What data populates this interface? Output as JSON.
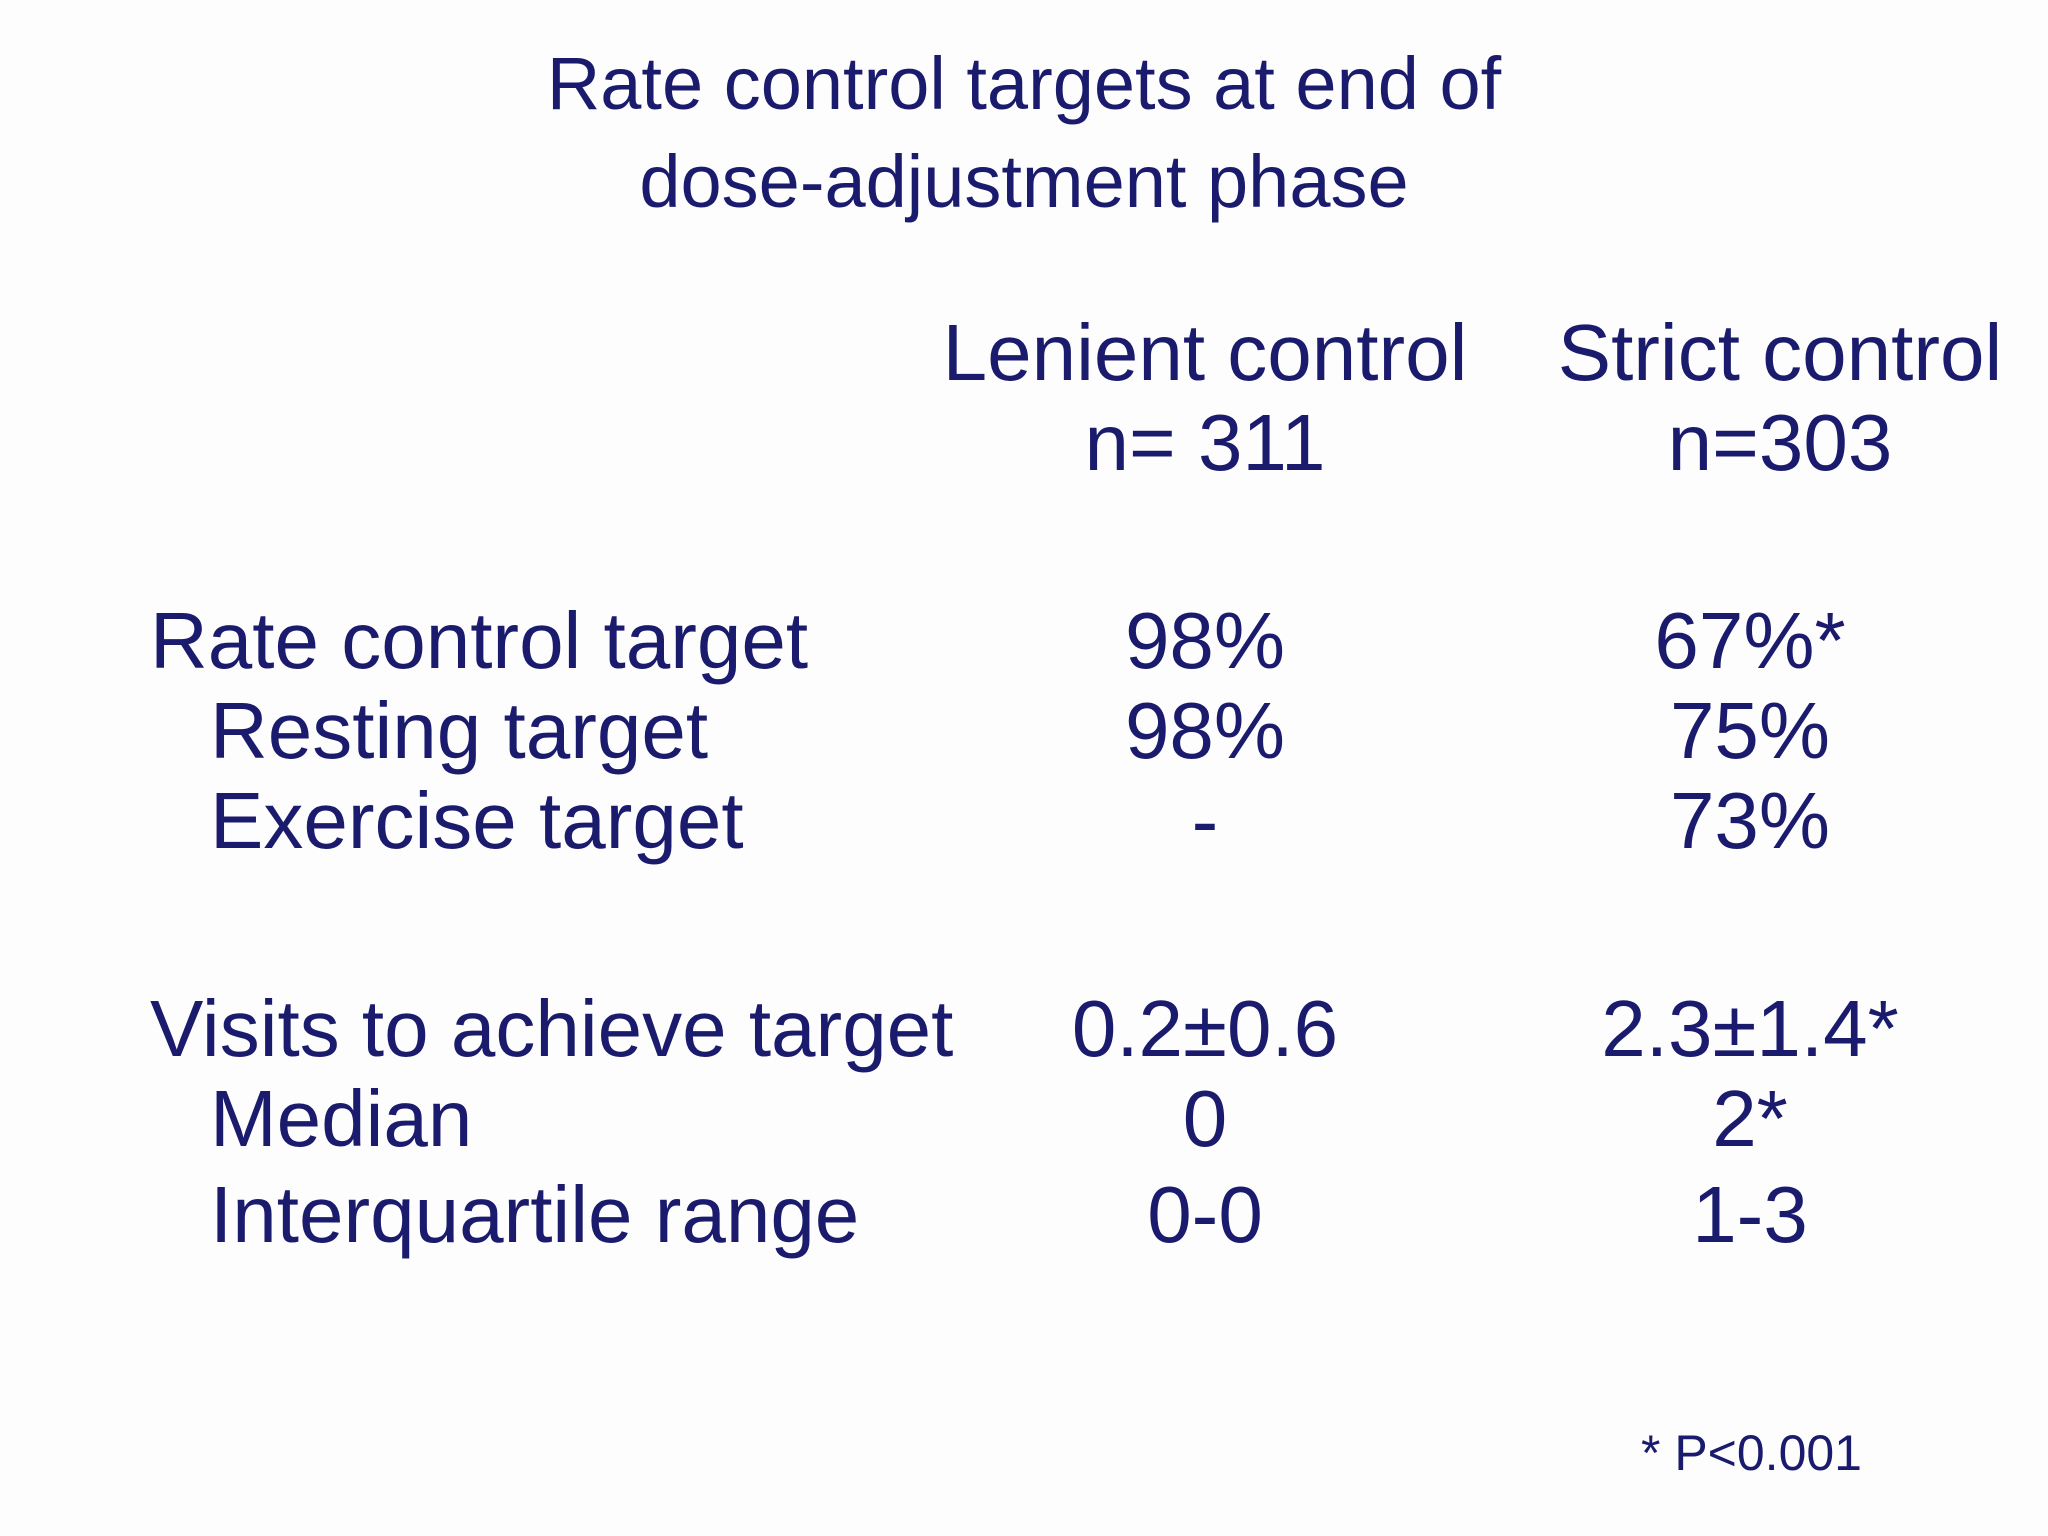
{
  "slide": {
    "title_line1": "Rate control targets at end of",
    "title_line2": "dose-adjustment phase",
    "footnote": "* P<0.001"
  },
  "table": {
    "columns": [
      {
        "name": "Lenient control",
        "n": "n= 311"
      },
      {
        "name": "Strict control",
        "n": "n=303"
      }
    ],
    "rows": [
      {
        "label": "Rate control target",
        "indent": false,
        "lenient": "98%",
        "strict": "67%*"
      },
      {
        "label": "Resting target",
        "indent": true,
        "lenient": "98%",
        "strict": "75%"
      },
      {
        "label": "Exercise target",
        "indent": true,
        "lenient": "-",
        "strict": "73%"
      },
      {
        "label": "Visits to achieve target",
        "indent": false,
        "lenient": "0.2±0.6",
        "strict": "2.3±1.4*"
      },
      {
        "label": "Median",
        "indent": true,
        "lenient": "0",
        "strict": "2*"
      },
      {
        "label": "Interquartile range",
        "indent": true,
        "lenient": "0-0",
        "strict": "1-3"
      }
    ]
  },
  "colors": {
    "text": "#1b1b6e",
    "background": "#fdfdfd"
  }
}
